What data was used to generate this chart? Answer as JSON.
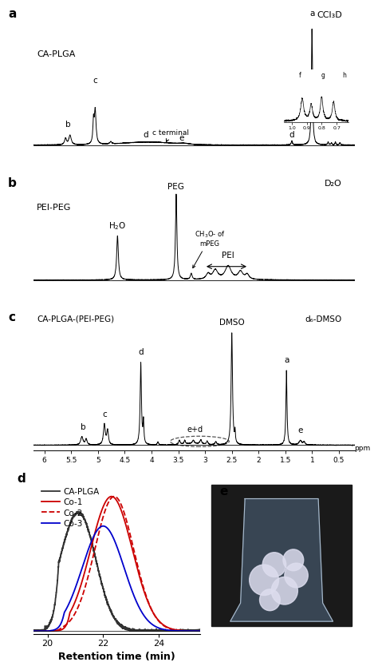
{
  "panel_a_label": "a",
  "panel_b_label": "b",
  "panel_c_label": "c",
  "panel_d_label": "d",
  "panel_e_label": "e",
  "ca_plga_label": "CA-PLGA",
  "pei_peg_label": "PEI-PEG",
  "ca_plga_pei_peg_label": "CA-PLGA-(PEI-PEG)",
  "ccl3d_label": "CCl₃D",
  "d2o_label": "D₂O",
  "d6dmso_label": "d₆-DMSO",
  "retention_xlabel": "Retention time (min)",
  "legend_ca_plga": "CA-PLGA",
  "legend_co1": "Co-1",
  "legend_co2": "Co-2",
  "legend_co3": "Co-3",
  "color_ca_plga": "#333333",
  "color_co1": "#cc0000",
  "color_co2": "#cc0000",
  "color_co3": "#0000cc",
  "background": "#ffffff"
}
